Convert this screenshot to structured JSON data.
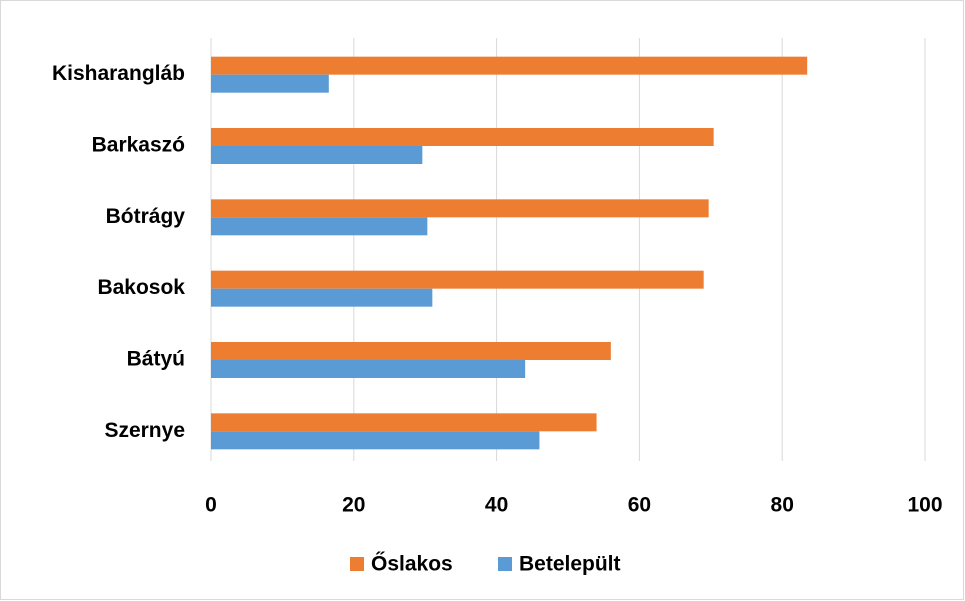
{
  "chart_data": {
    "type": "bar",
    "orientation": "horizontal",
    "categories": [
      "Kisharangláb",
      "Barkaszó",
      "Bótrágy",
      "Bakosok",
      "Bátyú",
      "Szernye"
    ],
    "series": [
      {
        "name": "Őslakos",
        "color": "#ed7d31",
        "values": [
          83.5,
          70.4,
          69.7,
          69,
          56,
          54
        ]
      },
      {
        "name": "Betelepült",
        "color": "#5b9bd5",
        "values": [
          16.5,
          29.6,
          30.3,
          31,
          44,
          46
        ]
      }
    ],
    "xlim": [
      0,
      100
    ],
    "xticks": [
      0,
      20,
      40,
      60,
      80,
      100
    ],
    "grid": true,
    "legend": "bottom"
  }
}
